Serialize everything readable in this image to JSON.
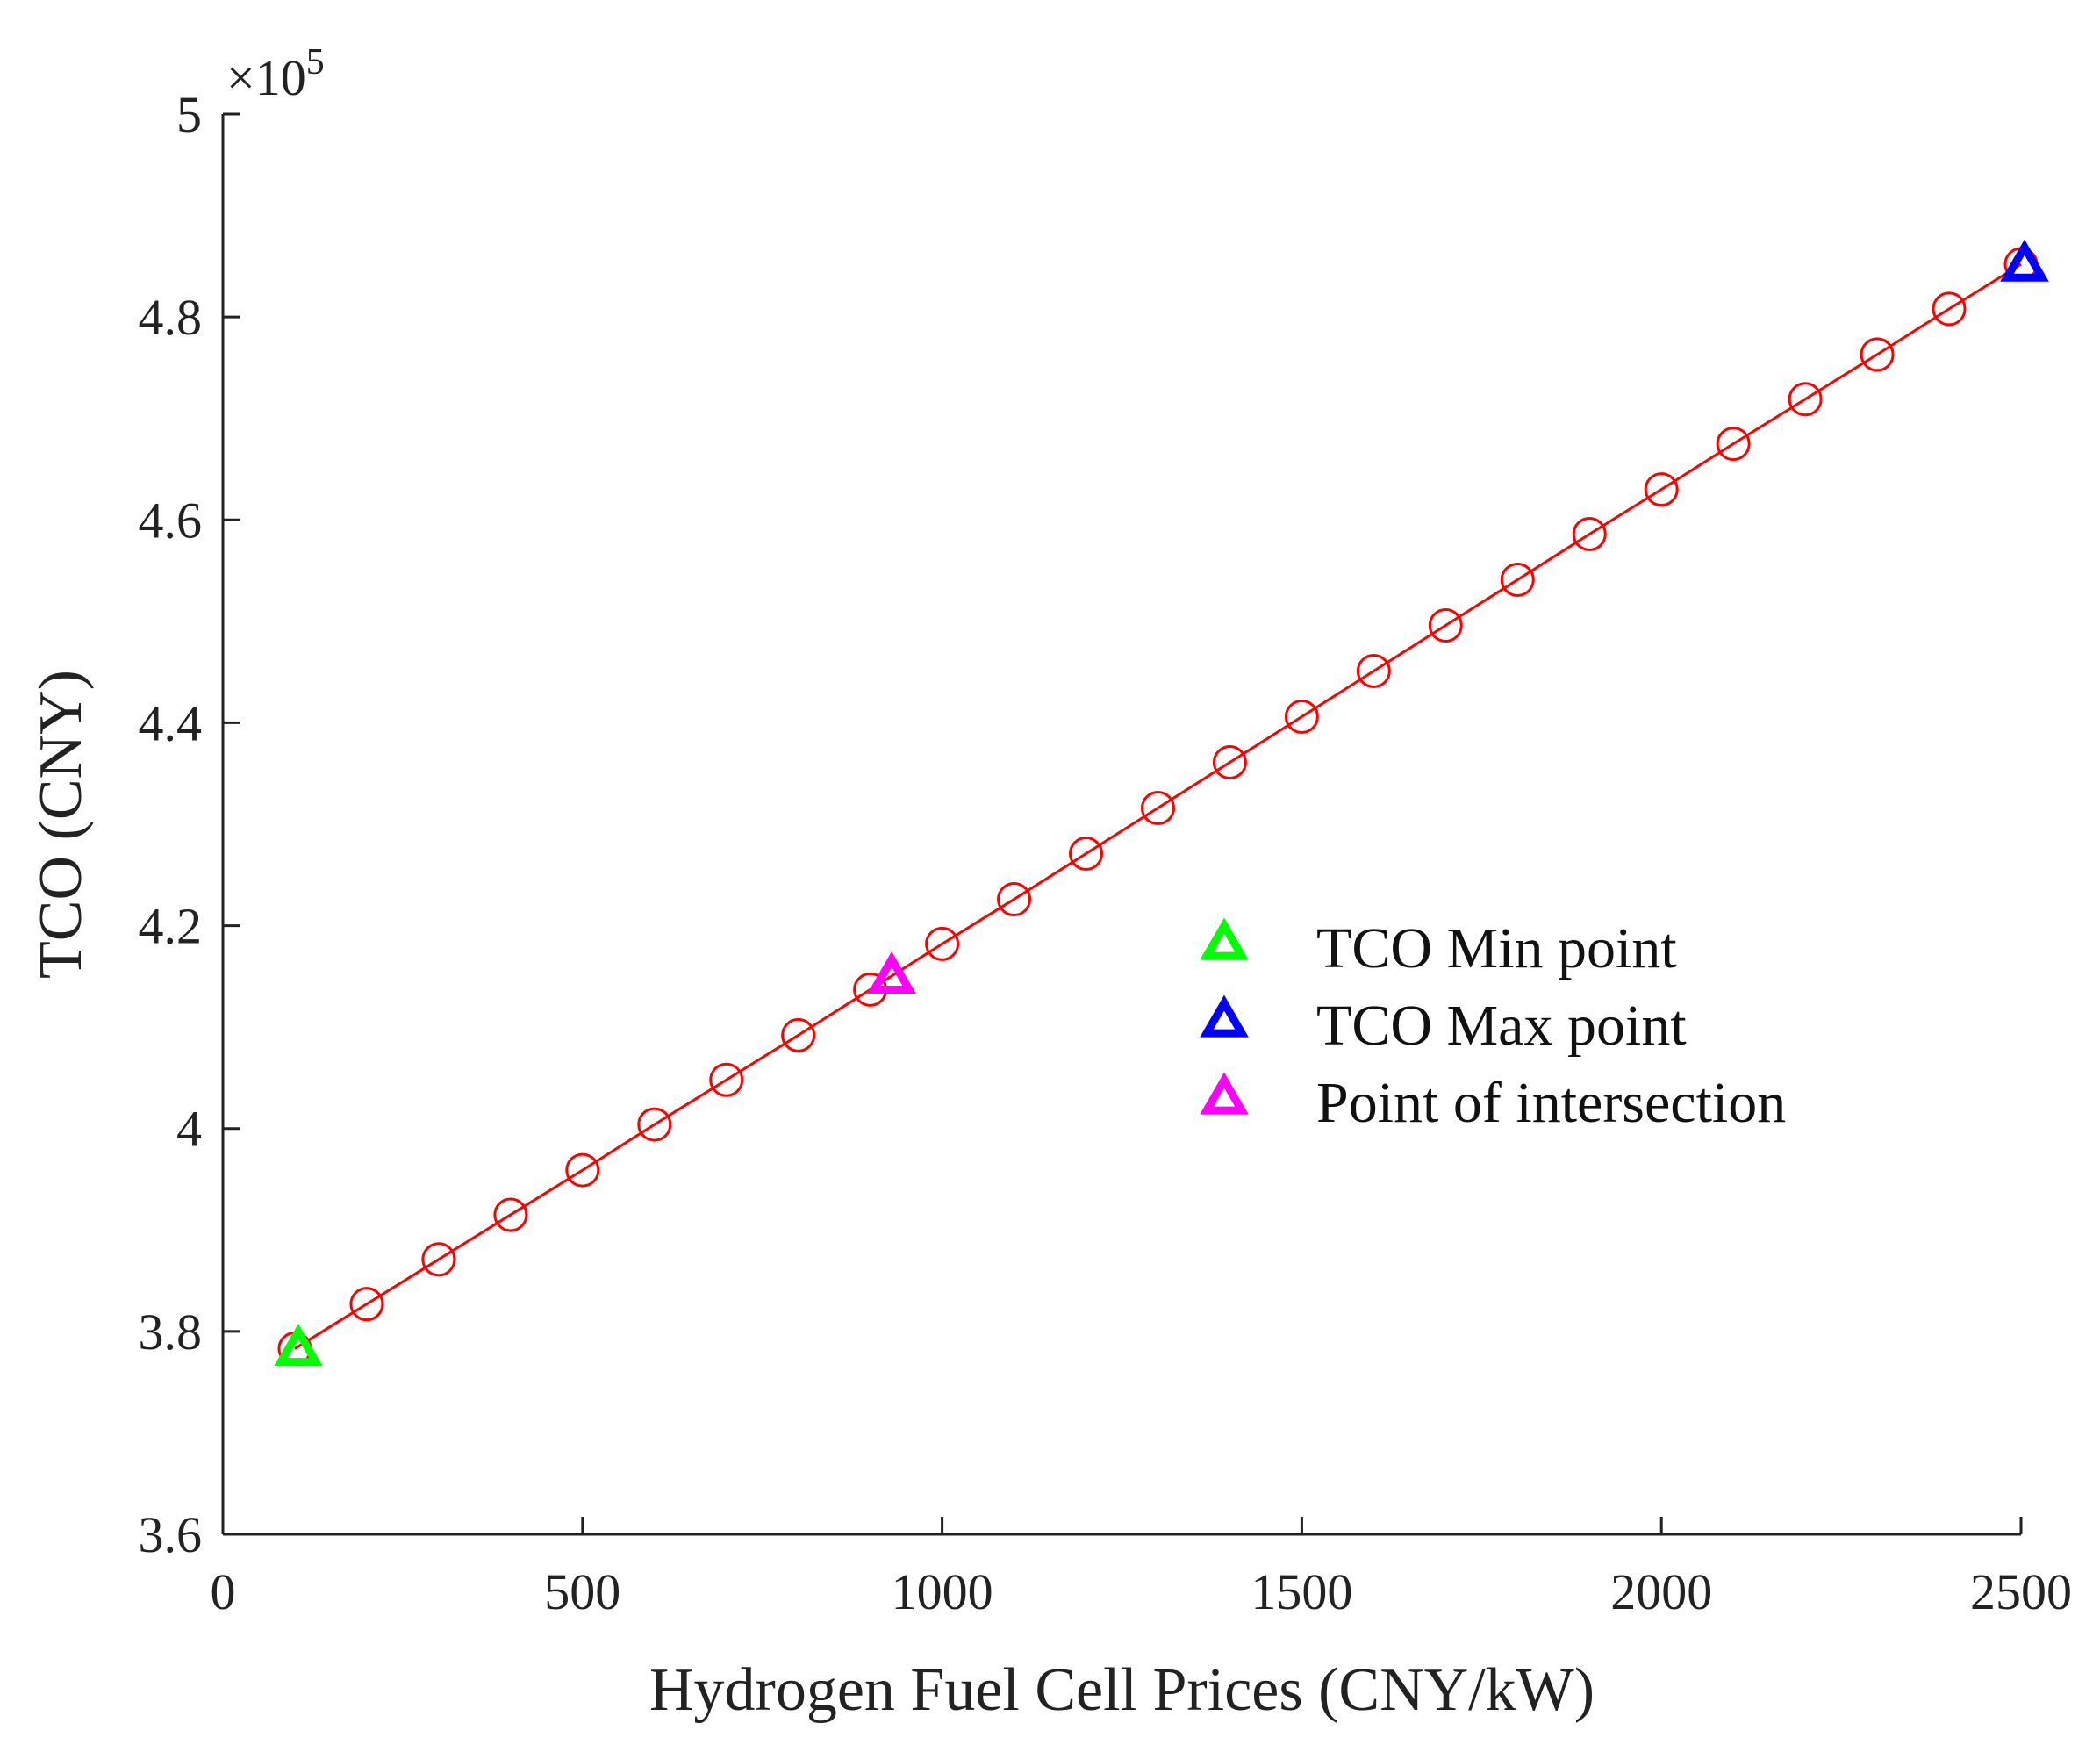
{
  "chart_data": {
    "type": "line",
    "xlabel": "Hydrogen Fuel Cell Prices (CNY/kW)",
    "ylabel": "TCO (CNY)",
    "xlim": [
      0,
      2500
    ],
    "ylim": [
      3.6,
      5.0
    ],
    "y_multiplier": "×10",
    "y_exponent": "5",
    "xticks": [
      0,
      500,
      1000,
      1500,
      2000,
      2500
    ],
    "xtick_labels": [
      "0",
      "500",
      "1000",
      "1500",
      "2000",
      "2500"
    ],
    "yticks": [
      3.6,
      3.8,
      4.0,
      4.2,
      4.4,
      4.6,
      4.8,
      5.0
    ],
    "ytick_labels": [
      "3.6",
      "3.8",
      "4",
      "4.2",
      "4.4",
      "4.6",
      "4.8",
      "5"
    ],
    "grid": false,
    "legend_position": "center-right",
    "series": [
      {
        "name": "TCO",
        "color": "#ff0000",
        "marker": "circle",
        "x": [
          100,
          200,
          300,
          400,
          500,
          600,
          700,
          800,
          900,
          1000,
          1100,
          1200,
          1300,
          1400,
          1500,
          1600,
          1700,
          1800,
          1900,
          2000,
          2100,
          2200,
          2300,
          2400,
          2500
        ],
        "y": [
          3.783,
          3.827,
          3.871,
          3.915,
          3.959,
          4.004,
          4.048,
          4.092,
          4.137,
          4.182,
          4.226,
          4.271,
          4.316,
          4.361,
          4.406,
          4.451,
          4.496,
          4.541,
          4.586,
          4.63,
          4.675,
          4.719,
          4.763,
          4.808,
          4.852
        ]
      }
    ],
    "special_points": [
      {
        "name": "TCO Min point",
        "color": "#00ff00",
        "x": 100,
        "y": 3.783
      },
      {
        "name": "TCO Max point",
        "color": "#0000ff",
        "x": 2500,
        "y": 4.852
      },
      {
        "name": "Point of intersection",
        "color": "#ff00ff",
        "x": 925,
        "y": 4.15
      }
    ],
    "legend": [
      "TCO Min point",
      "TCO Max point",
      "Point of intersection"
    ]
  }
}
